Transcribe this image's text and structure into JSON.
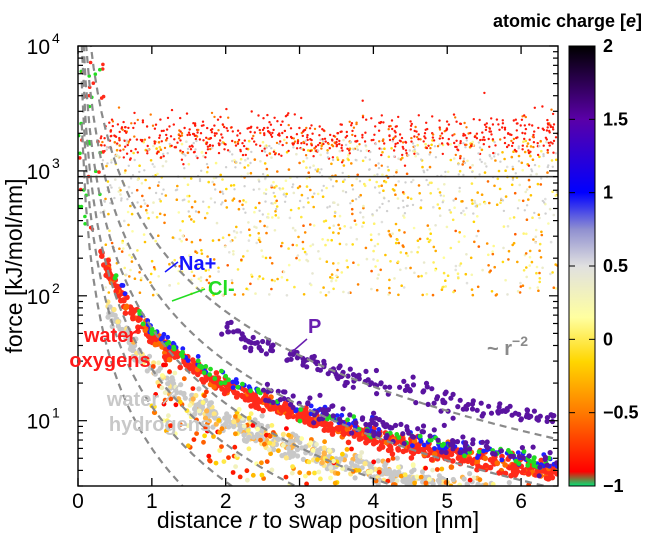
{
  "chart_data": {
    "type": "scatter",
    "xlabel_pre": "distance ",
    "xlabel_var": "r",
    "xlabel_post": " to swap position [nm]",
    "ylabel": "force [kJ/mol/nm]",
    "xlim": [
      0,
      6.5
    ],
    "ylim": [
      3,
      10000
    ],
    "yscale": "log",
    "x_ticks": [
      0,
      1,
      2,
      3,
      4,
      5,
      6
    ],
    "y_ticks": [
      10,
      100,
      1000,
      10000
    ],
    "y_tick_labels": [
      {
        "base": "10",
        "exp": "1"
      },
      {
        "base": "10",
        "exp": "2"
      },
      {
        "base": "10",
        "exp": "3"
      },
      {
        "base": "10",
        "exp": "4"
      }
    ],
    "reference_line_y": 900,
    "colorbar": {
      "title_pre": "atomic charge [",
      "title_var": "e",
      "title_post": "]",
      "range": [
        -1,
        2
      ],
      "tick_labels": [
        "2",
        "1.5",
        "1",
        "0.5",
        "0",
        "−0.5",
        "−1"
      ],
      "tick_values": [
        2,
        1.5,
        1,
        0.5,
        0,
        -0.5,
        -1
      ],
      "colors": [
        "#00e676",
        "#ff0000",
        "#ff7a00",
        "#ffd600",
        "#ffffa0",
        "#e0e0e0",
        "#9090d0",
        "#0000ff",
        "#5a00a8",
        "#000000"
      ]
    },
    "series": [
      {
        "name": "Na+",
        "color": "#1f1fff",
        "x_start": 0.45,
        "amp": 56,
        "exp": 1.35,
        "floor": 6
      },
      {
        "name": "Cl-",
        "color": "#22dd22",
        "x_start": 0.45,
        "amp": 54,
        "exp": 1.35,
        "floor": 6
      },
      {
        "name": "P",
        "color": "#5a14a0",
        "x_start": 1.9,
        "amp": 150,
        "exp": 1.45,
        "floor": 8
      },
      {
        "name": "water oxygens",
        "color": "#ff2a1a",
        "x_start": 0.3,
        "amp": 48,
        "exp": 1.35,
        "floor": 5
      },
      {
        "name": "water hydrogens",
        "color": "#c8c8c8",
        "x_start": 0.4,
        "amp": 26,
        "exp": 1.35,
        "floor": 4
      }
    ],
    "reference_curves_note": "~ r",
    "reference_curves_exp": "−2",
    "reference_curve_amplitudes": [
      6,
      13,
      26,
      55,
      120,
      300
    ]
  },
  "annotations": {
    "na": "Na+",
    "cl": "Cl-",
    "p": "P",
    "water_oxygens_1": "water",
    "water_oxygens_2": "oxygens",
    "water_hydrogens_1": "water",
    "water_hydrogens_2": "hydrogens",
    "r_note": "~ r",
    "r_note_exp": "−2"
  },
  "colors": {
    "na": "#1414ff",
    "cl": "#22dd22",
    "p": "#6a1fb0",
    "water_oxygens": "#ff1a1a",
    "water_hydrogens": "#c8c8c8",
    "r_note": "#8a8a8a"
  }
}
